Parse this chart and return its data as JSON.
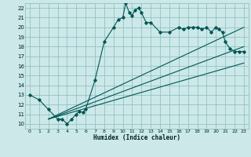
{
  "title": "",
  "xlabel": "Humidex (Indice chaleur)",
  "bg_color": "#cce8e8",
  "grid_color": "#88bbbb",
  "line_color": "#005555",
  "xlim": [
    -0.5,
    23.5
  ],
  "ylim": [
    9.5,
    22.5
  ],
  "xticks": [
    0,
    1,
    2,
    3,
    4,
    5,
    6,
    7,
    8,
    9,
    10,
    11,
    12,
    13,
    14,
    15,
    16,
    17,
    18,
    19,
    20,
    21,
    22,
    23
  ],
  "yticks": [
    10,
    11,
    12,
    13,
    14,
    15,
    16,
    17,
    18,
    19,
    20,
    21,
    22
  ],
  "main_curve_x": [
    0,
    1,
    2,
    3,
    3.5,
    4,
    4.5,
    5,
    5.3,
    5.7,
    6,
    7,
    8,
    9,
    9.5,
    10,
    10.3,
    10.7,
    11,
    11.3,
    11.7,
    12,
    12.5,
    13,
    14,
    15,
    16,
    16.5,
    17,
    17.5,
    18,
    18.5,
    19,
    19.5,
    20,
    20.3,
    20.7,
    21,
    21.5,
    22,
    22.5,
    23
  ],
  "main_curve_y": [
    13,
    12.5,
    11.5,
    10.5,
    10.5,
    10.0,
    10.5,
    11.0,
    11.3,
    11.2,
    11.5,
    14.5,
    18.5,
    20.0,
    20.8,
    21.0,
    22.5,
    21.5,
    21.2,
    21.8,
    22.0,
    21.5,
    20.5,
    20.5,
    19.5,
    19.5,
    20.0,
    19.8,
    20.0,
    20.0,
    20.0,
    19.8,
    20.0,
    19.5,
    20.0,
    19.8,
    19.5,
    18.5,
    17.8,
    17.5,
    17.5,
    17.5
  ],
  "line1_x": [
    2,
    23
  ],
  "line1_y": [
    10.5,
    16.3
  ],
  "line2_x": [
    2,
    23
  ],
  "line2_y": [
    10.5,
    18.0
  ],
  "line3_x": [
    2,
    23
  ],
  "line3_y": [
    10.5,
    20.0
  ]
}
